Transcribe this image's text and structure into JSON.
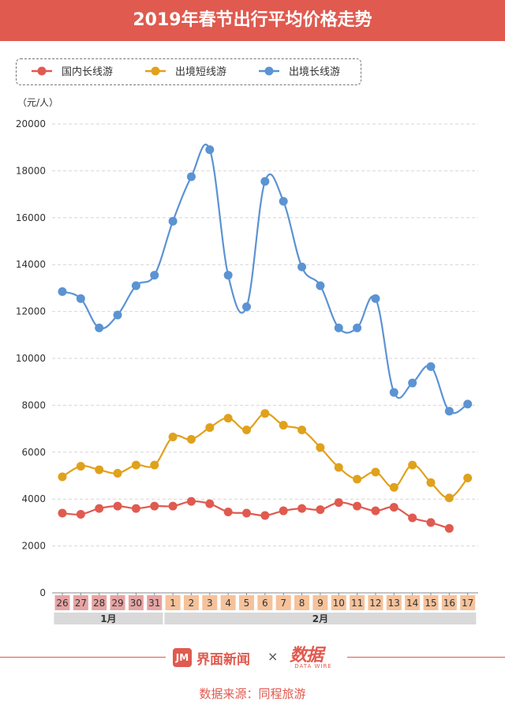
{
  "title": "2019年春节出行平均价格走势",
  "legend": {
    "items": [
      {
        "label": "国内长线游",
        "color": "#e05a4f"
      },
      {
        "label": "出境短线游",
        "color": "#e0a11b"
      },
      {
        "label": "出境长线游",
        "color": "#5b93d3"
      }
    ]
  },
  "chart_data": {
    "type": "line",
    "x": [
      "26",
      "27",
      "28",
      "29",
      "30",
      "31",
      "1",
      "2",
      "3",
      "4",
      "5",
      "6",
      "7",
      "8",
      "9",
      "10",
      "11",
      "12",
      "13",
      "14",
      "15",
      "16",
      "17"
    ],
    "x_groups": [
      {
        "label": "1月",
        "count": 6
      },
      {
        "label": "2月",
        "count": 17
      }
    ],
    "ylabel": "（元/人）",
    "ylim": [
      0,
      20000
    ],
    "yticks": [
      0,
      2000,
      4000,
      6000,
      8000,
      10000,
      12000,
      14000,
      16000,
      18000,
      20000
    ],
    "grid": true,
    "legend_position": "top-left",
    "series": [
      {
        "name": "国内长线游",
        "color": "#e05a4f",
        "values": [
          3400,
          3350,
          3600,
          3700,
          3600,
          3700,
          3700,
          3900,
          3800,
          3450,
          3400,
          3300,
          3500,
          3600,
          3550,
          3850,
          3700,
          3500,
          3650,
          3200,
          3000,
          2750,
          null
        ]
      },
      {
        "name": "出境短线游",
        "color": "#e0a11b",
        "values": [
          4950,
          5400,
          5250,
          5100,
          5450,
          5450,
          6650,
          6550,
          7050,
          7450,
          6950,
          7650,
          7150,
          6950,
          6200,
          5350,
          4850,
          5150,
          4500,
          5450,
          4700,
          4050,
          4900
        ]
      },
      {
        "name": "出境长线游",
        "color": "#5b93d3",
        "values": [
          12850,
          12550,
          11300,
          11850,
          13100,
          13550,
          15850,
          17750,
          18900,
          13550,
          12200,
          17550,
          16700,
          13900,
          13100,
          11300,
          11300,
          12550,
          8550,
          8950,
          9650,
          7750,
          8050
        ]
      }
    ]
  },
  "footer": {
    "brand": "界面新闻",
    "brand_mark": "JM",
    "times": "×",
    "logo_text": "数据",
    "logo_sub": "DATA WIRE",
    "source": "数据来源：同程旅游"
  }
}
